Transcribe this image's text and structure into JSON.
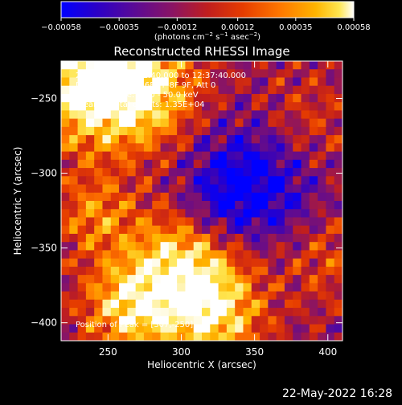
{
  "chart_data": {
    "type": "heatmap",
    "title": "Reconstructed RHESSI Image",
    "xlabel": "Heliocentric X (arcsec)",
    "ylabel": "Heliocentric Y (arcsec)",
    "xlim": [
      218,
      410
    ],
    "ylim": [
      -412,
      -225
    ],
    "x_ticks": [
      250,
      300,
      350,
      400
    ],
    "y_ticks": [
      -250,
      -300,
      -350,
      -400
    ],
    "x_tick_labels": [
      "250",
      "300",
      "350",
      "400"
    ],
    "y_tick_labels": [
      "−250",
      "−300",
      "−350",
      "−400"
    ],
    "colorbar": {
      "min": -0.00058,
      "max": 0.00058,
      "ticks": [
        -0.00058,
        -0.00035,
        -0.00012,
        0.00012,
        0.00035,
        0.00058
      ],
      "tick_labels": [
        "−0.00058",
        "−0.00035",
        "−0.00012",
        "0.00012",
        "0.00035",
        "0.00058"
      ],
      "units_prefix": "(photons cm",
      "units_exp1": "−2",
      "units_mid": " s",
      "units_exp2": "−1",
      "units_mid2": " asec",
      "units_exp3": "−2",
      "units_suffix": ")",
      "colormap": [
        "#0000ff",
        "#2a00c8",
        "#5a0a96",
        "#8a1464",
        "#c01e1e",
        "#e63c00",
        "#ff7800",
        "#ffb400",
        "#ffe650",
        "#ffffff"
      ]
    },
    "info_lines": [
      "28-Jul-2013 12:32:40.000 to 12:37:40.000",
      "Detectors: 3F 5F 6F 7F 8F 9F, Att 0",
      "Energy Range: 25.0 - 50.0 keV",
      "Clean     Total counts: 1.35E+04"
    ],
    "peak_text": "Position of Peak = [307,-250]",
    "peak": {
      "x": 307,
      "y": -250
    },
    "grid_cells": {
      "nx": 34,
      "ny": 34
    }
  },
  "footer": {
    "date": "22-May-2022 16:28"
  }
}
